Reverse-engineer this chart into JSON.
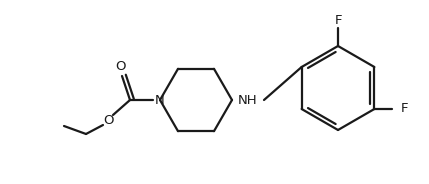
{
  "background_color": "#ffffff",
  "line_color": "#1a1a1a",
  "line_width": 1.6,
  "text_color": "#1a1a1a",
  "font_size": 9.5,
  "figsize": [
    4.29,
    1.84
  ],
  "dpi": 100,
  "label_N": "N",
  "label_NH": "NH",
  "label_O_carbonyl": "O",
  "label_O_ester": "O",
  "label_F1": "F",
  "label_F2": "F"
}
